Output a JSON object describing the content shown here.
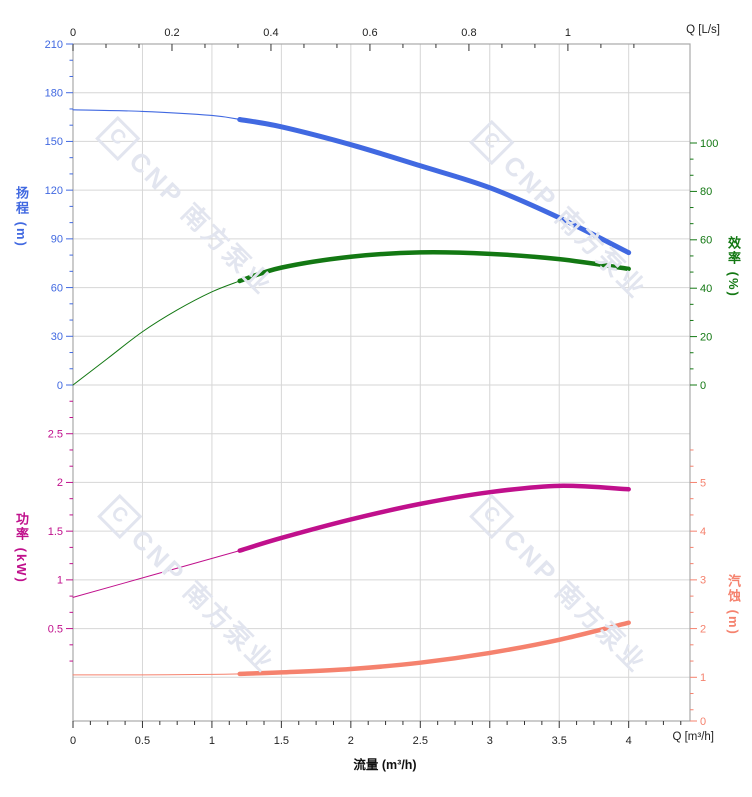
{
  "watermark": {
    "text": "CNP 南方泵业",
    "color": "#e2e5ef"
  },
  "chart_data": {
    "type": "line",
    "description": "Pump performance curves: head & efficiency (top), power & NPSH (bottom) vs flow rate",
    "x_axis_top": {
      "unit_label": "Q [L/s]",
      "tick_values": [
        0,
        0.2,
        0.4,
        0.6,
        0.8,
        1
      ],
      "tick_labels": [
        "0",
        "0.2",
        "0.4",
        "0.6",
        "0.8",
        "1"
      ],
      "minor_step": 0.0666667,
      "color": "#222222"
    },
    "x_axis_bottom": {
      "unit_label": "Q [m³/h]",
      "axis_title": "流量 (m³/h)",
      "tick_values": [
        0,
        0.5,
        1,
        1.5,
        2,
        2.5,
        3,
        3.5,
        4
      ],
      "tick_labels": [
        "0",
        "0.5",
        "1",
        "1.5",
        "2",
        "2.5",
        "3",
        "3.5",
        "4"
      ],
      "minor_step": 0.125,
      "color": "#222222"
    },
    "y_axes": {
      "head": {
        "title": "扬程 (m)",
        "side": "left",
        "region": "top",
        "color": "#4169E1",
        "tick_values": [
          210,
          180,
          150,
          120,
          90,
          60,
          30,
          0
        ],
        "tick_labels": [
          "210",
          "180",
          "150",
          "120",
          "90",
          "60",
          "30",
          "0"
        ],
        "minor_step": 10,
        "minor_range": [
          10,
          200
        ]
      },
      "efficiency": {
        "title": "效率 (%)",
        "side": "right",
        "region": "top",
        "color": "#137813",
        "tick_values": [
          100,
          80,
          60,
          40,
          20,
          0
        ],
        "tick_labels": [
          "100",
          "80",
          "60",
          "40",
          "20",
          "0"
        ],
        "minor_step": 6.66667,
        "minor_range": [
          6.66667,
          93.4
        ]
      },
      "power": {
        "title": "功率 (kW)",
        "side": "left",
        "region": "bottom",
        "color": "#C0108C",
        "tick_values": [
          2.5,
          2,
          1.5,
          1,
          0.5
        ],
        "tick_labels": [
          "2.5",
          "2",
          "1.5",
          "1",
          "0.5"
        ],
        "minor_step": 0.1666667,
        "minor_range": [
          0.1666667,
          2.84
        ]
      },
      "npsh": {
        "title": "汽蚀 (m)",
        "side": "right",
        "region": "bottom",
        "color": "#F5826E",
        "tick_values": [
          5,
          4,
          3,
          2,
          1,
          0
        ],
        "tick_labels": [
          "5",
          "4",
          "3",
          "2",
          "1",
          "0"
        ],
        "minor_step": 0.3333333,
        "minor_range": [
          0.3333333,
          5.67
        ]
      }
    },
    "series": [
      {
        "name": "head-curve",
        "axis": "head",
        "color": "#4169E1",
        "thick_from": 1.2,
        "thin_width": 1.1,
        "thick_width": 5,
        "points": [
          [
            0,
            169.5
          ],
          [
            0.5,
            168.5
          ],
          [
            1,
            166
          ],
          [
            1.2,
            163.5
          ],
          [
            1.5,
            159
          ],
          [
            2,
            148
          ],
          [
            2.5,
            135
          ],
          [
            3,
            121.5
          ],
          [
            3.5,
            103
          ],
          [
            4,
            81.5
          ]
        ]
      },
      {
        "name": "efficiency-curve",
        "axis": "efficiency",
        "color": "#137813",
        "thick_from": 1.2,
        "thin_width": 1,
        "thick_width": 4.5,
        "points": [
          [
            0,
            0
          ],
          [
            0.25,
            11
          ],
          [
            0.5,
            22
          ],
          [
            0.75,
            31
          ],
          [
            1,
            38.5
          ],
          [
            1.2,
            43
          ],
          [
            1.5,
            48.5
          ],
          [
            2,
            53
          ],
          [
            2.5,
            54.8
          ],
          [
            3,
            54.2
          ],
          [
            3.5,
            52
          ],
          [
            4,
            48
          ]
        ]
      },
      {
        "name": "power-curve",
        "axis": "power",
        "color": "#C0108C",
        "thick_from": 1.2,
        "thin_width": 1,
        "thick_width": 4.5,
        "points": [
          [
            0,
            0.82
          ],
          [
            0.6,
            1.06
          ],
          [
            1.2,
            1.3
          ],
          [
            1.5,
            1.43
          ],
          [
            2,
            1.62
          ],
          [
            2.5,
            1.78
          ],
          [
            3,
            1.9
          ],
          [
            3.5,
            1.965
          ],
          [
            4,
            1.93
          ]
        ]
      },
      {
        "name": "npsh-curve",
        "axis": "npsh",
        "color": "#F5826E",
        "thick_from": 1.2,
        "thin_width": 1,
        "thick_width": 4.5,
        "points": [
          [
            0,
            1.05
          ],
          [
            0.5,
            1.05
          ],
          [
            1,
            1.06
          ],
          [
            1.2,
            1.07
          ],
          [
            1.5,
            1.1
          ],
          [
            2,
            1.17
          ],
          [
            2.5,
            1.3
          ],
          [
            3,
            1.5
          ],
          [
            3.5,
            1.77
          ],
          [
            4,
            2.12
          ]
        ]
      }
    ],
    "grid": {
      "on": true,
      "color": "#d6d6d6",
      "border_color": "#a9a9a9",
      "tick_color": "#333333"
    }
  }
}
